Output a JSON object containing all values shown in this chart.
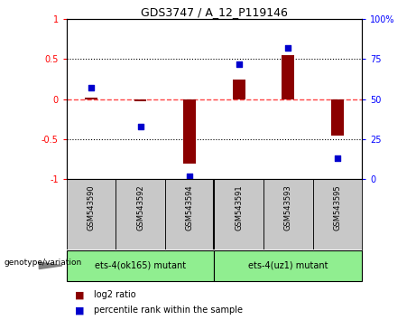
{
  "title": "GDS3747 / A_12_P119146",
  "samples": [
    "GSM543590",
    "GSM543592",
    "GSM543594",
    "GSM543591",
    "GSM543593",
    "GSM543595"
  ],
  "log2_ratio": [
    0.02,
    -0.02,
    -0.8,
    0.25,
    0.55,
    -0.45
  ],
  "percentile_rank": [
    57,
    33,
    2,
    72,
    82,
    13
  ],
  "groups": [
    {
      "label": "ets-4(ok165) mutant",
      "span": [
        0,
        2
      ],
      "color": "#90ee90"
    },
    {
      "label": "ets-4(uz1) mutant",
      "span": [
        3,
        5
      ],
      "color": "#90ee90"
    }
  ],
  "bar_color": "#8B0000",
  "dot_color": "#0000CD",
  "left_ylim": [
    -1,
    1
  ],
  "right_ylim": [
    0,
    100
  ],
  "left_yticks": [
    -1,
    -0.5,
    0,
    0.5,
    1
  ],
  "right_yticks": [
    0,
    25,
    50,
    75,
    100
  ],
  "hline_color": "#FF4444",
  "dotted_color": "black",
  "label_log2": "log2 ratio",
  "label_pct": "percentile rank within the sample",
  "genotype_label": "genotype/variation",
  "sample_box_color": "#c8c8c8",
  "bar_width": 0.25
}
